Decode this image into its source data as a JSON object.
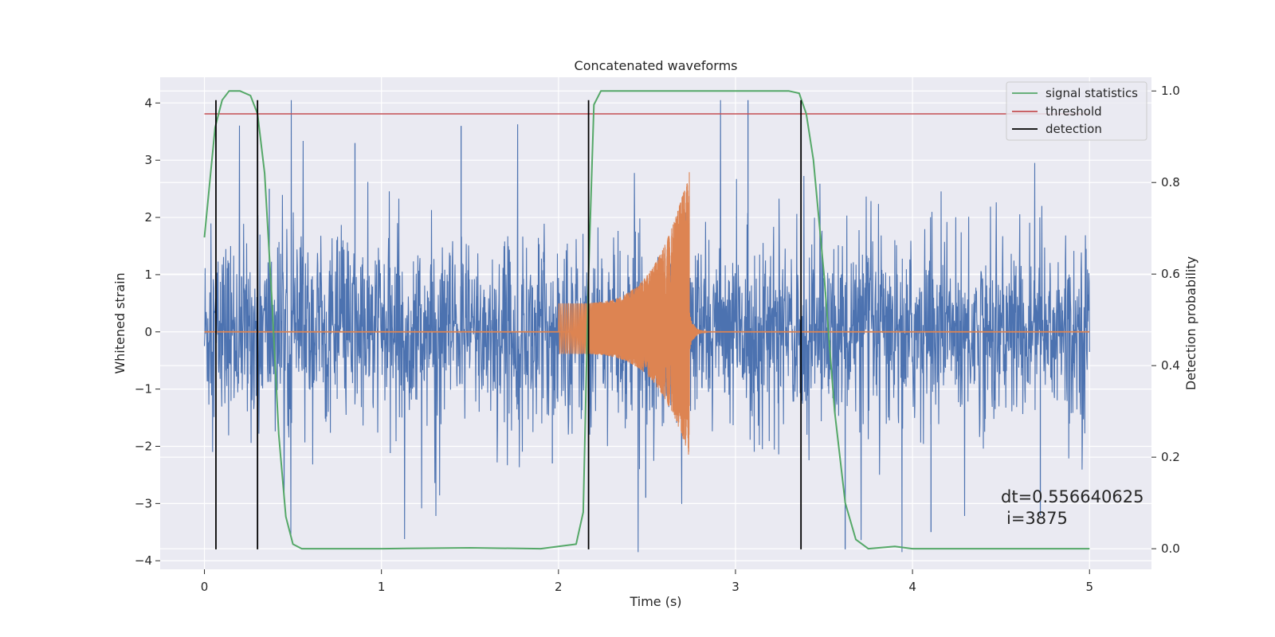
{
  "chart_data": {
    "type": "line",
    "title": "Concatenated waveforms",
    "xlabel": "Time (s)",
    "ylabel": "Whitened strain",
    "y2label": "Detection probability",
    "xlim": [
      -0.25,
      5.35
    ],
    "ylim": [
      -4.15,
      4.45
    ],
    "y2lim": [
      -0.045,
      1.03
    ],
    "x_ticks": [
      0,
      1,
      2,
      3,
      4,
      5
    ],
    "y_ticks": [
      -4,
      -3,
      -2,
      -1,
      0,
      1,
      2,
      3,
      4
    ],
    "y2_ticks": [
      0.0,
      0.2,
      0.4,
      0.6,
      0.8,
      1.0
    ],
    "grid": true,
    "legend_position": "top-right",
    "colors": {
      "noise": "#4c72b0",
      "signal": "#dd8452",
      "statistics": "#55a868",
      "threshold": "#c44e52",
      "detection": "#000000",
      "background": "#eaeaf2",
      "grid": "#ffffff"
    },
    "series": [
      {
        "name": "signal statistics",
        "axis": "right",
        "x": [
          0,
          0.03,
          0.06,
          0.1,
          0.14,
          0.2,
          0.26,
          0.3,
          0.34,
          0.38,
          0.42,
          0.46,
          0.5,
          0.55,
          1.0,
          1.5,
          1.9,
          2.1,
          2.14,
          2.17,
          2.2,
          2.24,
          2.3,
          3.0,
          3.3,
          3.36,
          3.4,
          3.44,
          3.5,
          3.56,
          3.62,
          3.68,
          3.75,
          3.9,
          4.0,
          4.5,
          5.0
        ],
        "y": [
          0.68,
          0.8,
          0.92,
          0.98,
          1.0,
          1.0,
          0.99,
          0.95,
          0.82,
          0.55,
          0.25,
          0.07,
          0.01,
          0.0,
          0.0,
          0.002,
          0.0,
          0.01,
          0.08,
          0.6,
          0.97,
          1.0,
          1.0,
          1.0,
          1.0,
          0.995,
          0.95,
          0.85,
          0.6,
          0.3,
          0.1,
          0.02,
          0.0,
          0.005,
          0.0,
          0.0,
          0.0
        ]
      },
      {
        "name": "threshold",
        "axis": "right",
        "x": [
          0,
          5.0
        ],
        "y": [
          0.95,
          0.95
        ]
      },
      {
        "name": "detection",
        "axis": "left",
        "x": [
          0.065,
          0.3,
          2.17,
          3.37
        ],
        "y_range": [
          -3.8,
          4.05
        ]
      }
    ],
    "noise": {
      "x_range": [
        0,
        5.0
      ],
      "amplitude_envelope": 0.8,
      "peak_values": [
        2.5,
        3.3,
        3.6,
        -2.3,
        -2.9,
        4.05,
        -3.8,
        -3.5,
        -3.2
      ]
    },
    "chirp": {
      "x_range": [
        2.0,
        2.74
      ],
      "amplitude_start": 0.5,
      "amplitude_peak": 2.85,
      "amplitude_min_peak": -2.2,
      "ringdown_end": 2.98
    },
    "annotations": [
      "dt=0.556640625",
      "i=3875"
    ]
  }
}
